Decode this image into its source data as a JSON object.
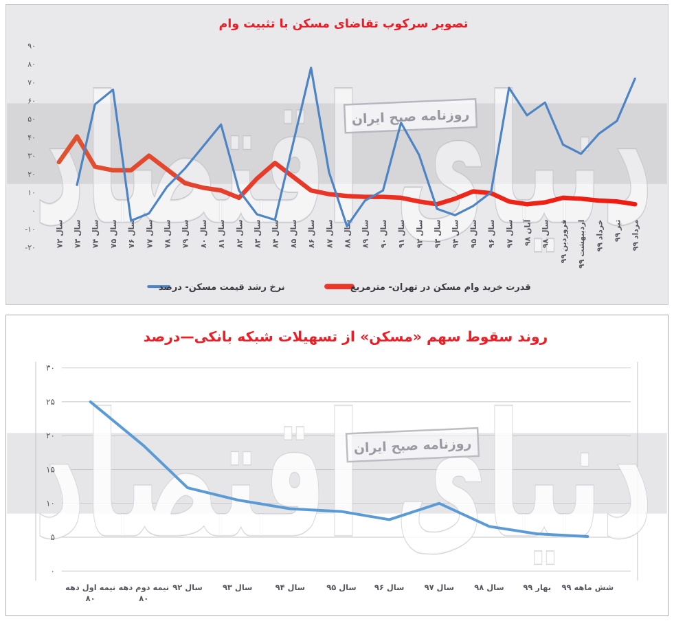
{
  "watermark": {
    "brand_text": "دنیای اقتصاد",
    "stamp_text": "روزنامه صبح ایران"
  },
  "colors": {
    "title_red": "#ee1c25",
    "top_panel_bg": "#e9e9ec",
    "top_band": "#d6d6d9",
    "bottom_band": "#e6e6e9",
    "blue_top": "#4d84c3",
    "blue_bottom": "#5b9bd5",
    "red_line": "#e8392b",
    "axis_text": "#56565e"
  },
  "chart_data": [
    {
      "type": "line",
      "title": "تصویر سرکوب تقاضای مسکن با تثبیت وام",
      "categories": [
        "سال ۷۲",
        "سال ۷۳",
        "سال ۷۴",
        "سال ۷۵",
        "سال ۷۶",
        "سال ۷۷",
        "سال ۷۸",
        "سال ۷۹",
        "سال ۸۰",
        "سال ۸۱",
        "سال ۸۲",
        "سال ۸۳",
        "سال ۸۴",
        "سال ۸۵",
        "سال ۸۶",
        "سال ۸۷",
        "سال ۸۸",
        "سال ۸۹",
        "سال ۹۰",
        "سال ۹۱",
        "سال ۹۲",
        "سال ۹۳",
        "سال ۹۴",
        "سال ۹۵",
        "سال ۹۶",
        "سال ۹۷",
        "آبان ۹۸",
        "سال ۹۸",
        "فروردین ۹۹",
        "اردیبهشت ۹۹",
        "خرداد ۹۹",
        "تیر ۹۹",
        "مرداد ۹۹"
      ],
      "series": [
        {
          "name": "نرخ رشد قیمت مسکن- درصد",
          "color": "#4d84c3",
          "values": [
            null,
            14,
            58,
            66,
            -5.5,
            -1.5,
            13,
            23,
            35,
            47,
            11,
            -2,
            -5,
            36.5,
            78,
            21,
            -8.5,
            5.5,
            11,
            48,
            30.5,
            1,
            -2.5,
            2.5,
            10,
            67,
            52,
            59,
            36,
            31,
            42,
            49,
            72
          ]
        },
        {
          "name": "قدرت خرید وام مسکن در تهران- مترمربع",
          "color": "#e8392b",
          "values": [
            26.5,
            40.5,
            24,
            22,
            22,
            30,
            22.5,
            15,
            12.5,
            11,
            7,
            17.5,
            26,
            18.5,
            11,
            9,
            8,
            7.5,
            7.5,
            7,
            5,
            3.5,
            6.5,
            10.5,
            9.5,
            5,
            3.5,
            4.5,
            7,
            6.5,
            5.5,
            5,
            3.5
          ]
        }
      ],
      "ylim": [
        -20,
        90
      ],
      "yticks": [
        [
          90,
          "۹۰"
        ],
        [
          80,
          "۸۰"
        ],
        [
          70,
          "۷۰"
        ],
        [
          60,
          "۶۰"
        ],
        [
          50,
          "۵۰"
        ],
        [
          40,
          "۴۰"
        ],
        [
          30,
          "۳۰"
        ],
        [
          20,
          "۲۰"
        ],
        [
          10,
          "۱۰"
        ],
        [
          0,
          "۰"
        ],
        [
          -10,
          "-۱۰"
        ],
        [
          -20,
          "-۲۰"
        ]
      ],
      "grid": false,
      "legend_position": "bottom",
      "xlabel": "",
      "ylabel": ""
    },
    {
      "type": "line",
      "title": "روند سقوط سهم «مسکن» از تسهیلات شبکه بانکی—درصد",
      "categories": [
        "نیمه اول دهه\n۸۰",
        "نیمه دوم دهه\n۸۰",
        "سال ۹۲",
        "سال ۹۳",
        "سال ۹۴",
        "سال ۹۵",
        "سال ۹۶",
        "سال ۹۷",
        "سال ۹۸",
        "بهار ۹۹",
        "شش ماهه ۹۹"
      ],
      "series": [
        {
          "name": "سهم مسکن از تسهیلات شبکه بانکی - درصد",
          "color": "#5b9bd5",
          "values": [
            25,
            18.5,
            12.3,
            10.5,
            9.2,
            8.8,
            7.6,
            10,
            6.6,
            5.5,
            5.1
          ]
        }
      ],
      "ylim": [
        0,
        30
      ],
      "yticks": [
        [
          30,
          "۳۰"
        ],
        [
          25,
          "۲۵"
        ],
        [
          20,
          "۲۰"
        ],
        [
          15,
          "۱۵"
        ],
        [
          10,
          "۱۰"
        ],
        [
          5,
          "۵"
        ],
        [
          0,
          "۰"
        ]
      ],
      "grid": true,
      "legend_position": "none",
      "xlabel": "",
      "ylabel": ""
    }
  ]
}
